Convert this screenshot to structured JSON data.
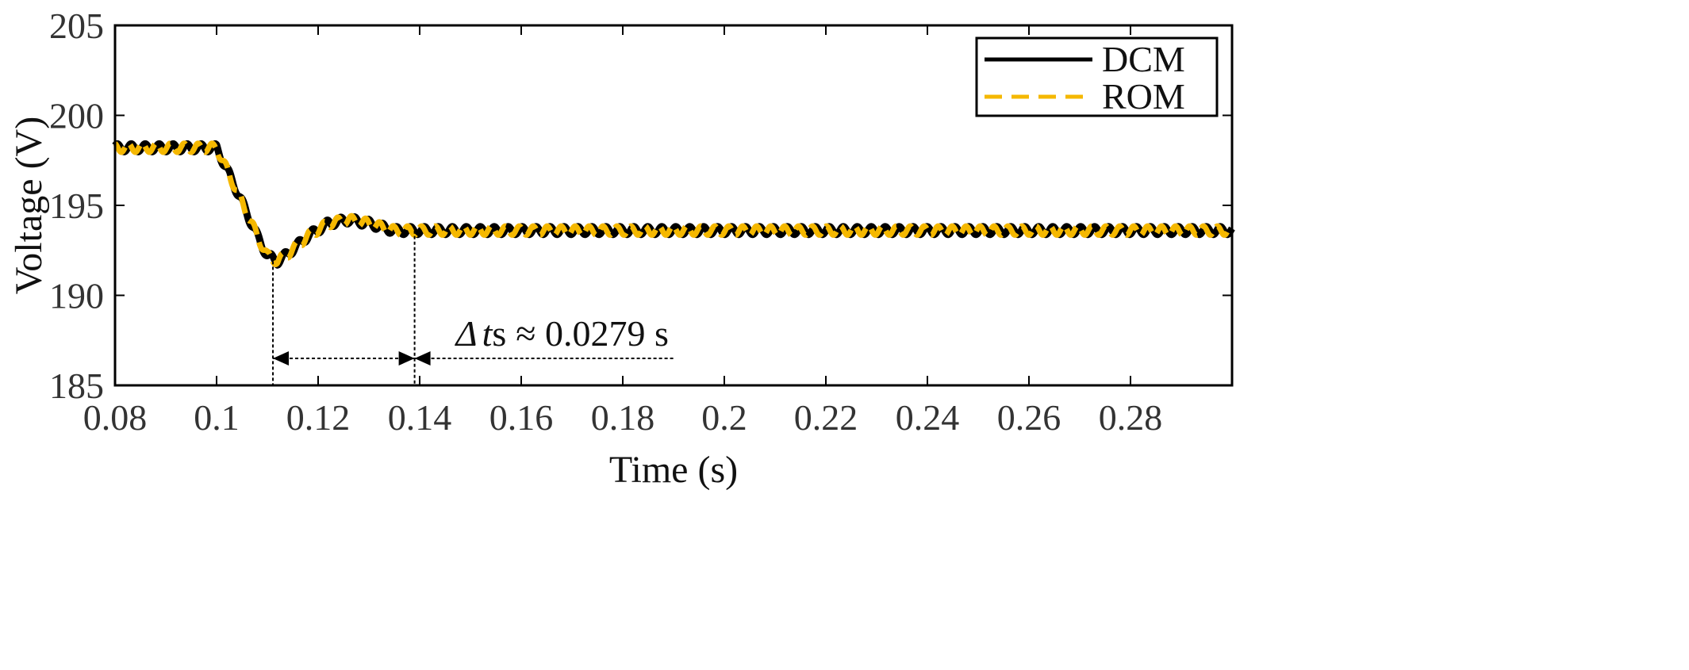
{
  "chart_data": {
    "type": "line",
    "xlabel": "Time (s)",
    "ylabel": "Voltage (V)",
    "xlim": [
      0.08,
      0.3
    ],
    "ylim": [
      185,
      205
    ],
    "x_ticks": [
      0.08,
      0.1,
      0.12,
      0.14,
      0.16,
      0.18,
      0.2,
      0.22,
      0.24,
      0.26,
      0.28
    ],
    "x_tick_labels": [
      "0.08",
      "0.1",
      "0.12",
      "0.14",
      "0.16",
      "0.18",
      "0.2",
      "0.22",
      "0.24",
      "0.26",
      "0.28"
    ],
    "y_ticks": [
      185,
      190,
      195,
      200,
      205
    ],
    "y_tick_labels": [
      "185",
      "190",
      "195",
      "200",
      "205"
    ],
    "grid": false,
    "legend_position": "top-right",
    "colors": {
      "DCM": "#000000",
      "ROM": "#F5B800",
      "annotation": "#000000"
    },
    "series": [
      {
        "name": "DCM",
        "style": "solid",
        "x": [
          0.08,
          0.1,
          0.101,
          0.104,
          0.108,
          0.11,
          0.112,
          0.114,
          0.118,
          0.122,
          0.126,
          0.13,
          0.135,
          0.14,
          0.16,
          0.2,
          0.25,
          0.3
        ],
        "y": [
          198.2,
          198.2,
          197.6,
          195.8,
          193.3,
          192.2,
          191.9,
          192.3,
          193.3,
          194.0,
          194.2,
          194.0,
          193.6,
          193.6,
          193.6,
          193.6,
          193.6,
          193.6
        ],
        "ripple_amplitude": 0.22
      },
      {
        "name": "ROM",
        "style": "dashed",
        "x": [
          0.08,
          0.1,
          0.101,
          0.104,
          0.108,
          0.11,
          0.112,
          0.114,
          0.118,
          0.122,
          0.126,
          0.13,
          0.135,
          0.14,
          0.16,
          0.2,
          0.25,
          0.3
        ],
        "y": [
          198.2,
          198.2,
          197.6,
          195.8,
          193.3,
          192.2,
          191.9,
          192.3,
          193.3,
          194.0,
          194.2,
          194.0,
          193.6,
          193.6,
          193.6,
          193.6,
          193.6,
          193.6
        ],
        "ripple_amplitude": 0.25
      }
    ],
    "annotation": {
      "text_prefix": "Δ",
      "text_var": "t",
      "text_sub": "s",
      "text_value": "≈ 0.0279 s",
      "t_start": 0.1111,
      "t_end": 0.139,
      "arrow_y": 186.5,
      "dotted_extent": 0.19
    }
  }
}
